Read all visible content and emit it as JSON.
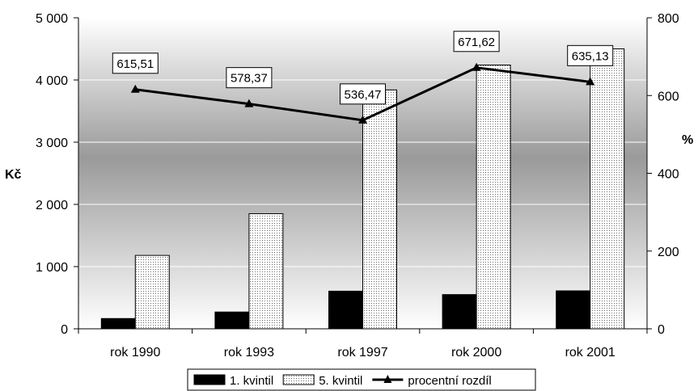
{
  "chart_data": {
    "type": "bar",
    "categories": [
      "rok 1990",
      "rok 1993",
      "rok 1997",
      "rok 2000",
      "rok 2001"
    ],
    "series": [
      {
        "name": "1. kvintil",
        "axis": "left",
        "kind": "bar",
        "color": "#000000",
        "values": [
          165,
          270,
          605,
          550,
          610
        ]
      },
      {
        "name": "5. kvintil",
        "axis": "left",
        "kind": "bar",
        "pattern": "dotted",
        "color": "#ffffff",
        "values": [
          1180,
          1850,
          3840,
          4240,
          4500
        ]
      },
      {
        "name": "procentní rozdíl",
        "axis": "right",
        "kind": "line",
        "marker": "triangle",
        "color": "#000000",
        "values": [
          615.51,
          578.37,
          536.47,
          671.62,
          635.13
        ],
        "labels": [
          "615,51",
          "578,37",
          "536,47",
          "671,62",
          "635,13"
        ]
      }
    ],
    "ylabel": "Kč",
    "y2label": "%",
    "ylim": [
      0,
      5000
    ],
    "y2lim": [
      0,
      800
    ],
    "yticks": [
      0,
      1000,
      2000,
      3000,
      4000,
      5000
    ],
    "ytick_labels": [
      "0",
      "1 000",
      "2 000",
      "3 000",
      "4 000",
      "5 000"
    ],
    "y2ticks": [
      0,
      200,
      400,
      600,
      800
    ],
    "y2tick_labels": [
      "0",
      "200",
      "400",
      "600",
      "800"
    ],
    "grid": true,
    "legend": "bottom",
    "background": "gradient-gray"
  }
}
